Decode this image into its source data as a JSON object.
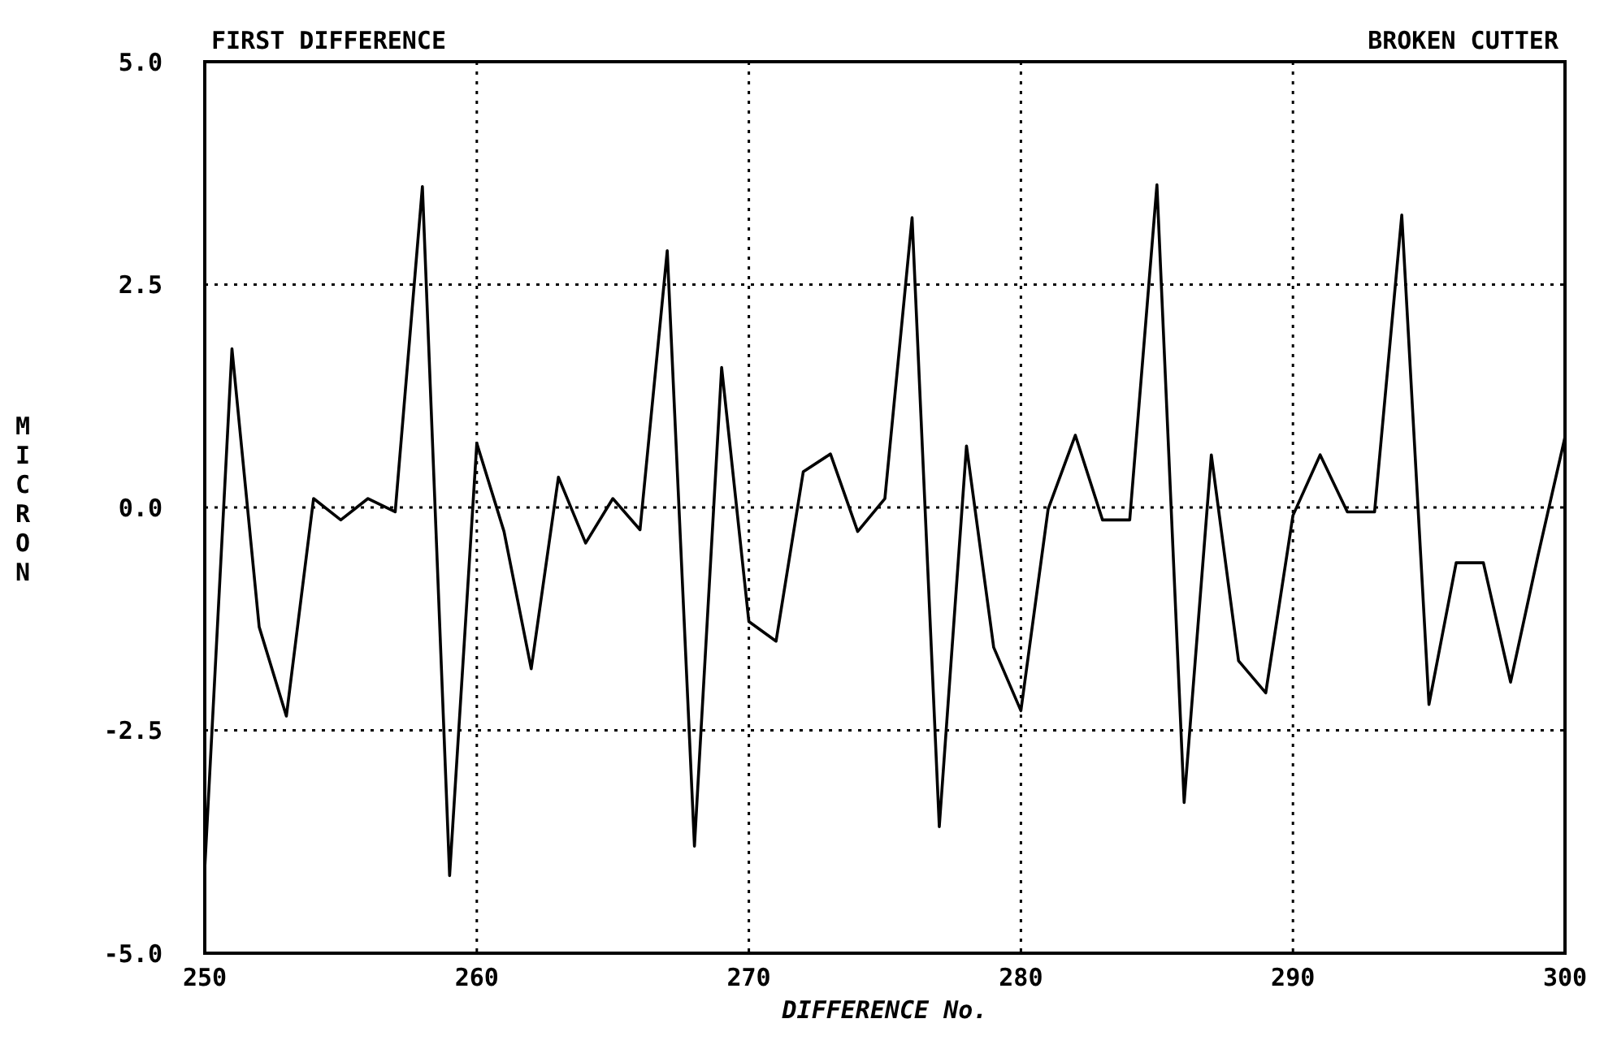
{
  "chart_data": {
    "type": "line",
    "title": "FIRST DIFFERENCE",
    "subtitle": "BROKEN CUTTER",
    "xlabel": "DIFFERENCE No.",
    "ylabel": "MICRON",
    "x": [
      250,
      251,
      252,
      253,
      254,
      255,
      256,
      257,
      258,
      259,
      260,
      261,
      262,
      263,
      264,
      265,
      266,
      267,
      268,
      269,
      270,
      271,
      272,
      273,
      274,
      275,
      276,
      277,
      278,
      279,
      280,
      281,
      282,
      283,
      284,
      285,
      286,
      287,
      288,
      289,
      290,
      291,
      292,
      293,
      294,
      295,
      296,
      297,
      298,
      299,
      300
    ],
    "series": [
      {
        "color": "#000000",
        "values": [
          -4.05,
          1.78,
          -1.34,
          -2.34,
          0.1,
          -0.14,
          0.1,
          -0.05,
          3.6,
          -4.13,
          0.72,
          -0.27,
          -1.81,
          0.34,
          -0.4,
          0.1,
          -0.25,
          2.88,
          -3.8,
          1.57,
          -1.28,
          -1.5,
          0.4,
          0.6,
          -0.27,
          0.1,
          3.25,
          -3.58,
          0.69,
          -1.57,
          -2.28,
          -0.02,
          0.81,
          -0.14,
          -0.14,
          3.62,
          -3.31,
          0.59,
          -1.72,
          -2.08,
          -0.09,
          0.59,
          -0.05,
          -0.05,
          3.28,
          -2.21,
          -0.62,
          -0.62,
          -1.96,
          -0.55,
          0.79
        ]
      }
    ],
    "xlim": [
      250,
      300
    ],
    "xticks": [
      250,
      260,
      270,
      280,
      290,
      300
    ],
    "ylim": [
      -5,
      5
    ],
    "yticks": [
      {
        "value": 5,
        "label": "5.0"
      },
      2.5,
      {
        "value": 0,
        "label": "0.0"
      },
      -2.5,
      {
        "value": -5,
        "label": "-5.0"
      }
    ],
    "grid": true,
    "line_style": "solid",
    "marker": "none"
  }
}
